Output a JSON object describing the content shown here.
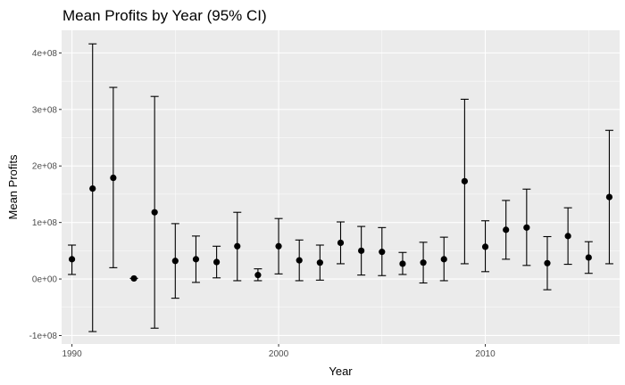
{
  "chart_data": {
    "type": "scatter",
    "title": "Mean Profits by Year (95% CI)",
    "xlabel": "Year",
    "ylabel": "Mean Profits",
    "xlim": [
      1989.5,
      2016.5
    ],
    "ylim": [
      -115000000,
      440000000
    ],
    "x_ticks": [
      1990,
      2000,
      2010
    ],
    "x_tick_labels": [
      "1990",
      "2000",
      "2010"
    ],
    "y_ticks": [
      -100000000,
      0,
      100000000,
      200000000,
      300000000,
      400000000
    ],
    "y_tick_labels": [
      "-1e+08",
      "0e+00",
      "1e+08",
      "2e+08",
      "3e+08",
      "4e+08"
    ],
    "grid": true,
    "legend": "none",
    "points": [
      {
        "x": 1990,
        "y": 35000000,
        "lower": 8000000,
        "upper": 60000000
      },
      {
        "x": 1991,
        "y": 160000000,
        "lower": -93000000,
        "upper": 416000000
      },
      {
        "x": 1992,
        "y": 179000000,
        "lower": 20000000,
        "upper": 339000000
      },
      {
        "x": 1993,
        "y": 1000000,
        "lower": 1000000,
        "upper": 1000000
      },
      {
        "x": 1994,
        "y": 118000000,
        "lower": -87000000,
        "upper": 323000000
      },
      {
        "x": 1995,
        "y": 32000000,
        "lower": -34000000,
        "upper": 98000000
      },
      {
        "x": 1996,
        "y": 35000000,
        "lower": -6000000,
        "upper": 76000000
      },
      {
        "x": 1997,
        "y": 30000000,
        "lower": 2000000,
        "upper": 58000000
      },
      {
        "x": 1998,
        "y": 58000000,
        "lower": -3000000,
        "upper": 118000000
      },
      {
        "x": 1999,
        "y": 7000000,
        "lower": -3000000,
        "upper": 18000000
      },
      {
        "x": 2000,
        "y": 58000000,
        "lower": 9000000,
        "upper": 107000000
      },
      {
        "x": 2001,
        "y": 33000000,
        "lower": -3000000,
        "upper": 69000000
      },
      {
        "x": 2002,
        "y": 29000000,
        "lower": -2000000,
        "upper": 60000000
      },
      {
        "x": 2003,
        "y": 64000000,
        "lower": 27000000,
        "upper": 101000000
      },
      {
        "x": 2004,
        "y": 50000000,
        "lower": 7000000,
        "upper": 93000000
      },
      {
        "x": 2005,
        "y": 48000000,
        "lower": 6000000,
        "upper": 91000000
      },
      {
        "x": 2006,
        "y": 27000000,
        "lower": 8000000,
        "upper": 47000000
      },
      {
        "x": 2007,
        "y": 29000000,
        "lower": -7000000,
        "upper": 65000000
      },
      {
        "x": 2008,
        "y": 35000000,
        "lower": -3000000,
        "upper": 74000000
      },
      {
        "x": 2009,
        "y": 173000000,
        "lower": 27000000,
        "upper": 318000000
      },
      {
        "x": 2010,
        "y": 57000000,
        "lower": 13000000,
        "upper": 103000000
      },
      {
        "x": 2011,
        "y": 87000000,
        "lower": 35000000,
        "upper": 139000000
      },
      {
        "x": 2012,
        "y": 91000000,
        "lower": 24000000,
        "upper": 159000000
      },
      {
        "x": 2013,
        "y": 28000000,
        "lower": -19000000,
        "upper": 75000000
      },
      {
        "x": 2014,
        "y": 76000000,
        "lower": 26000000,
        "upper": 126000000
      },
      {
        "x": 2015,
        "y": 38000000,
        "lower": 10000000,
        "upper": 66000000
      },
      {
        "x": 2016,
        "y": 145000000,
        "lower": 27000000,
        "upper": 263000000
      }
    ]
  }
}
